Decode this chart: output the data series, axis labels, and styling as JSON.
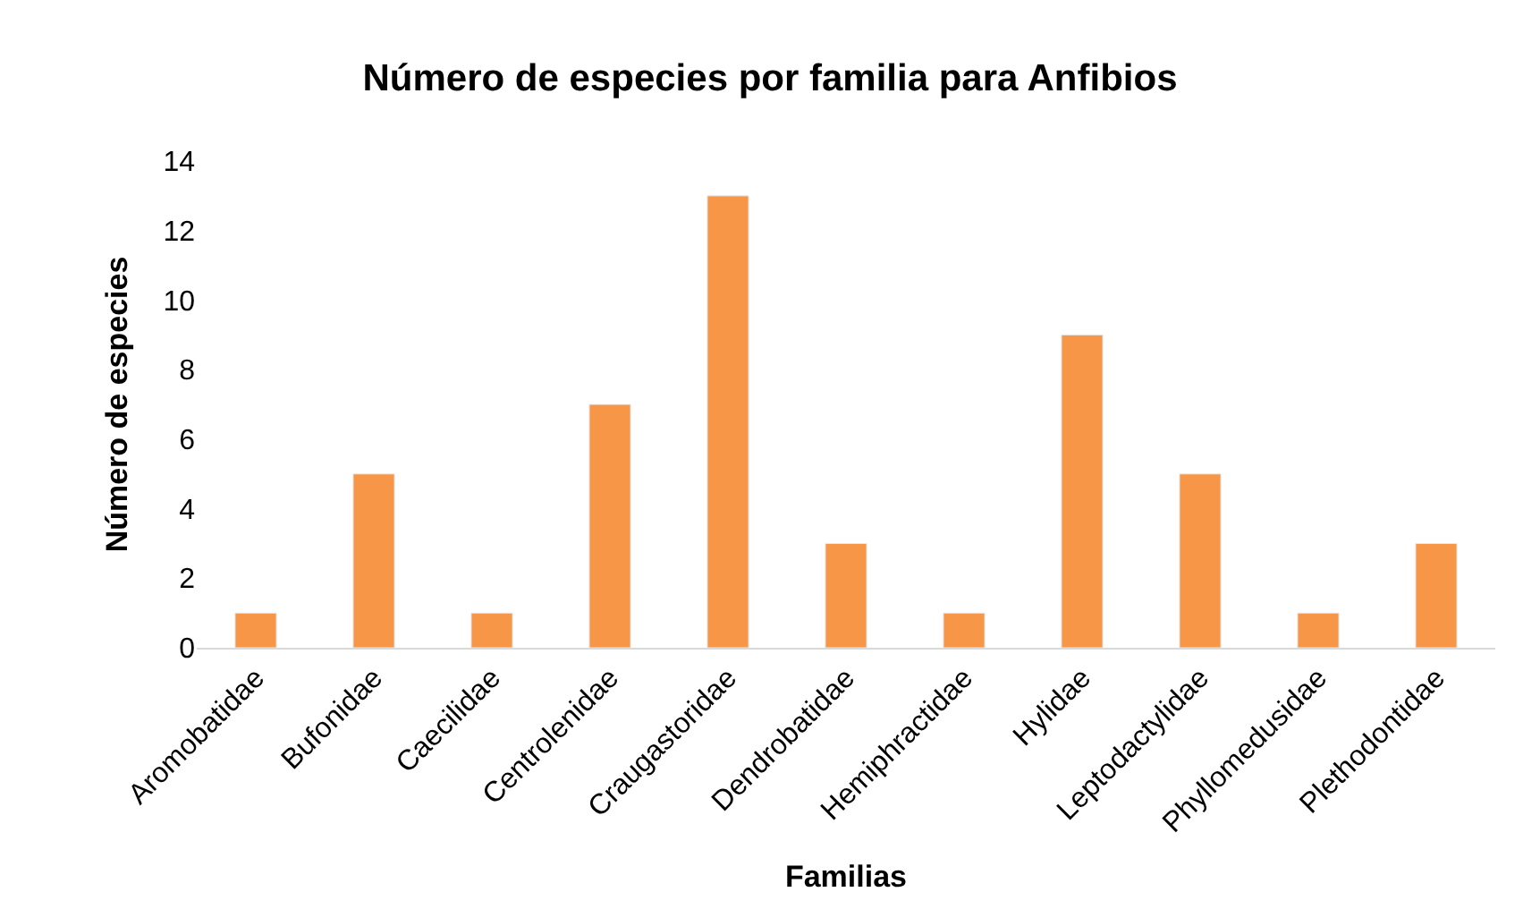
{
  "chart_data": {
    "type": "bar",
    "title": "Número de especies por familia para Anfibios",
    "xlabel": "Familias",
    "ylabel": "Número de especies",
    "categories": [
      "Aromobatidae",
      "Bufonidae",
      "Caecilidae",
      "Centrolenidae",
      "Craugastoridae",
      "Dendrobatidae",
      "Hemiphractidae",
      "Hylidae",
      "Leptodactylidae",
      "Phyllomedusidae",
      "Plethodontidae"
    ],
    "values": [
      1,
      5,
      1,
      7,
      13,
      3,
      1,
      9,
      5,
      1,
      3
    ],
    "color": "#f79646",
    "ylim": [
      0,
      14
    ],
    "yticks": [
      0,
      2,
      4,
      6,
      8,
      10,
      12,
      14
    ],
    "grid": false,
    "legend": false
  }
}
